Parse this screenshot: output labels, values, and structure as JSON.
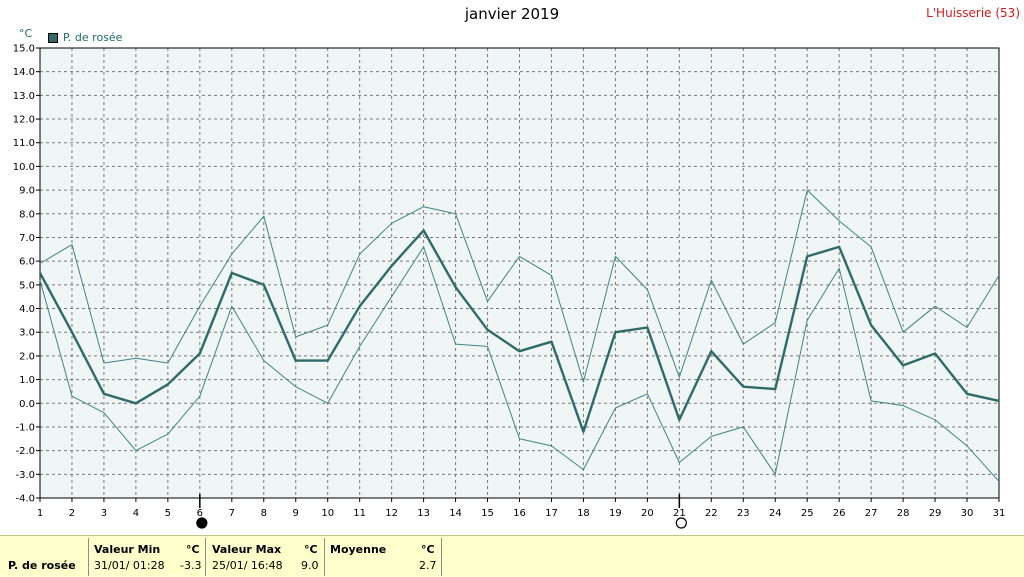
{
  "header": {
    "title": "janvier 2019",
    "station": "L'Huisserie (53)",
    "unit": "°C",
    "legend_label": "P. de rosée"
  },
  "chart_data": {
    "type": "line",
    "title": "janvier 2019",
    "ylabel": "°C",
    "ylim": [
      -4.0,
      15.0
    ],
    "y_ticks": [
      "15.0",
      "14.0",
      "13.0",
      "12.0",
      "11.0",
      "10.0",
      "9.0",
      "8.0",
      "7.0",
      "6.0",
      "5.0",
      "4.0",
      "3.0",
      "2.0",
      "1.0",
      "0.0",
      "-1.0",
      "-2.0",
      "-3.0",
      "-4.0"
    ],
    "x": [
      1,
      2,
      3,
      4,
      5,
      6,
      7,
      8,
      9,
      10,
      11,
      12,
      13,
      14,
      15,
      16,
      17,
      18,
      19,
      20,
      21,
      22,
      23,
      24,
      25,
      26,
      27,
      28,
      29,
      30,
      31
    ],
    "grid": true,
    "legend_position": "top-left",
    "colors": {
      "mean": "#2f6b6b",
      "range": "#3f8585",
      "grid": "#7a7a7a",
      "plot_bg": "#f0f5f5"
    },
    "series": [
      {
        "name": "P. de rosée",
        "role": "mean",
        "values": [
          5.5,
          3.0,
          0.4,
          0.0,
          0.8,
          2.1,
          5.5,
          5.0,
          1.8,
          1.8,
          4.1,
          5.8,
          7.3,
          4.9,
          3.1,
          2.2,
          2.6,
          -1.2,
          3.0,
          3.2,
          -0.7,
          2.2,
          0.7,
          0.6,
          6.2,
          6.6,
          3.3,
          1.6,
          2.1,
          0.4,
          0.1
        ]
      },
      {
        "role": "max",
        "values": [
          5.9,
          6.7,
          1.7,
          1.9,
          1.7,
          4.1,
          6.3,
          7.9,
          2.8,
          3.3,
          6.3,
          7.6,
          8.3,
          8.0,
          4.3,
          6.2,
          5.4,
          0.9,
          6.2,
          4.8,
          1.1,
          5.2,
          2.5,
          3.4,
          9.0,
          7.7,
          6.6,
          3.0,
          4.1,
          3.2,
          5.4
        ]
      },
      {
        "role": "min",
        "values": [
          5.2,
          0.3,
          -0.4,
          -2.0,
          -1.3,
          0.3,
          4.1,
          1.8,
          0.7,
          0.0,
          2.4,
          4.5,
          6.6,
          2.5,
          2.4,
          -1.5,
          -1.8,
          -2.8,
          -0.2,
          0.4,
          -2.5,
          -1.4,
          -1.0,
          -3.0,
          3.5,
          5.7,
          0.1,
          -0.1,
          -0.7,
          -1.8,
          -3.3
        ]
      }
    ],
    "moon_phases": [
      {
        "day": 6,
        "phase": "new-moon"
      },
      {
        "day": 21,
        "phase": "full-moon"
      }
    ]
  },
  "summary": {
    "row_label": "P. de rosée",
    "min_header": "Valeur Min",
    "min_unit": "°C",
    "min_date": "31/01/  01:28",
    "min_value": "-3.3",
    "max_header": "Valeur Max",
    "max_unit": "°C",
    "max_date": "25/01/  16:48",
    "max_value": "9.0",
    "mean_header": "Moyenne",
    "mean_unit": "°C",
    "mean_value": "2.7"
  }
}
